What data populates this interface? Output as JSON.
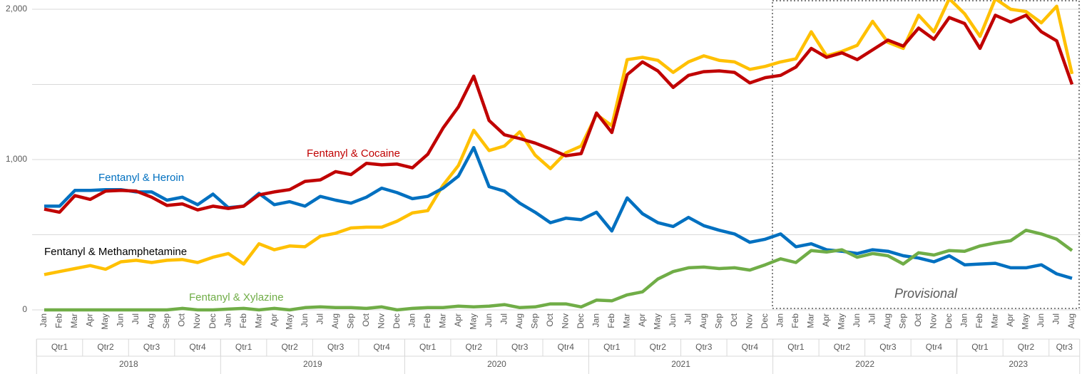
{
  "chart_data": {
    "type": "line",
    "categories": [
      "Jan",
      "Feb",
      "Mar",
      "Apr",
      "May",
      "Jun",
      "Jul",
      "Aug",
      "Sep",
      "Oct",
      "Nov",
      "Dec",
      "Jan",
      "Feb",
      "Mar",
      "Apr",
      "May",
      "Jun",
      "Jul",
      "Aug",
      "Sep",
      "Oct",
      "Nov",
      "Dec",
      "Jan",
      "Feb",
      "Mar",
      "Apr",
      "May",
      "Jun",
      "Jul",
      "Aug",
      "Sep",
      "Oct",
      "Nov",
      "Dec",
      "Jan",
      "Feb",
      "Mar",
      "Apr",
      "May",
      "Jun",
      "Jul",
      "Aug",
      "Sep",
      "Oct",
      "Nov",
      "Dec",
      "Jan",
      "Feb",
      "Mar",
      "Apr",
      "May",
      "Jun",
      "Jul",
      "Aug",
      "Sep",
      "Oct",
      "Nov",
      "Dec",
      "Jan",
      "Feb",
      "Mar",
      "Apr",
      "May",
      "Jun",
      "Jul",
      "Aug"
    ],
    "quarters": [
      "Qtr1",
      "Qtr1",
      "Qtr1",
      "Qtr2",
      "Qtr2",
      "Qtr2",
      "Qtr3",
      "Qtr3",
      "Qtr3",
      "Qtr4",
      "Qtr4",
      "Qtr4",
      "Qtr1",
      "Qtr1",
      "Qtr1",
      "Qtr2",
      "Qtr2",
      "Qtr2",
      "Qtr3",
      "Qtr3",
      "Qtr3",
      "Qtr4",
      "Qtr4",
      "Qtr4",
      "Qtr1",
      "Qtr1",
      "Qtr1",
      "Qtr2",
      "Qtr2",
      "Qtr2",
      "Qtr3",
      "Qtr3",
      "Qtr3",
      "Qtr4",
      "Qtr4",
      "Qtr4",
      "Qtr1",
      "Qtr1",
      "Qtr1",
      "Qtr2",
      "Qtr2",
      "Qtr2",
      "Qtr3",
      "Qtr3",
      "Qtr3",
      "Qtr4",
      "Qtr4",
      "Qtr4",
      "Qtr1",
      "Qtr1",
      "Qtr1",
      "Qtr2",
      "Qtr2",
      "Qtr2",
      "Qtr3",
      "Qtr3",
      "Qtr3",
      "Qtr4",
      "Qtr4",
      "Qtr4",
      "Qtr1",
      "Qtr1",
      "Qtr1",
      "Qtr2",
      "Qtr2",
      "Qtr2",
      "Qtr3",
      "Qtr3"
    ],
    "years": [
      "2018",
      "2018",
      "2018",
      "2018",
      "2018",
      "2018",
      "2018",
      "2018",
      "2018",
      "2018",
      "2018",
      "2018",
      "2019",
      "2019",
      "2019",
      "2019",
      "2019",
      "2019",
      "2019",
      "2019",
      "2019",
      "2019",
      "2019",
      "2019",
      "2020",
      "2020",
      "2020",
      "2020",
      "2020",
      "2020",
      "2020",
      "2020",
      "2020",
      "2020",
      "2020",
      "2020",
      "2021",
      "2021",
      "2021",
      "2021",
      "2021",
      "2021",
      "2021",
      "2021",
      "2021",
      "2021",
      "2021",
      "2021",
      "2022",
      "2022",
      "2022",
      "2022",
      "2022",
      "2022",
      "2022",
      "2022",
      "2022",
      "2022",
      "2022",
      "2022",
      "2023",
      "2023",
      "2023",
      "2023",
      "2023",
      "2023",
      "2023",
      "2023"
    ],
    "series": [
      {
        "name": "Fentanyl & Heroin",
        "color": "#0070c0",
        "values": [
          690,
          690,
          795,
          795,
          800,
          800,
          785,
          785,
          730,
          750,
          700,
          770,
          680,
          690,
          775,
          700,
          720,
          690,
          755,
          730,
          710,
          750,
          810,
          780,
          740,
          755,
          810,
          890,
          1080,
          820,
          790,
          710,
          650,
          580,
          610,
          600,
          650,
          525,
          745,
          640,
          580,
          555,
          615,
          560,
          530,
          505,
          450,
          470,
          505,
          420,
          440,
          400,
          390,
          375,
          400,
          390,
          360,
          345,
          320,
          360,
          300,
          305,
          310,
          280,
          280,
          300,
          240,
          210
        ]
      },
      {
        "name": "Fentanyl & Cocaine",
        "color": "#c00000",
        "values": [
          670,
          650,
          760,
          735,
          790,
          795,
          790,
          750,
          695,
          705,
          665,
          690,
          675,
          690,
          765,
          785,
          800,
          855,
          865,
          920,
          900,
          975,
          965,
          970,
          945,
          1035,
          1210,
          1350,
          1555,
          1260,
          1165,
          1140,
          1110,
          1070,
          1025,
          1040,
          1310,
          1180,
          1565,
          1650,
          1590,
          1480,
          1560,
          1585,
          1590,
          1580,
          1510,
          1545,
          1560,
          1615,
          1740,
          1680,
          1710,
          1665,
          1730,
          1795,
          1755,
          1875,
          1800,
          1945,
          1905,
          1740,
          1960,
          1915,
          1960,
          1850,
          1790,
          1500
        ]
      },
      {
        "name": "Fentanyl & Methamphetamine",
        "color": "#ffc000",
        "label_color": "#000000",
        "values": [
          235,
          255,
          275,
          295,
          270,
          320,
          330,
          315,
          330,
          335,
          315,
          350,
          375,
          305,
          440,
          400,
          425,
          420,
          490,
          510,
          545,
          550,
          550,
          590,
          645,
          660,
          830,
          960,
          1195,
          1060,
          1090,
          1185,
          1030,
          940,
          1045,
          1090,
          1300,
          1225,
          1665,
          1680,
          1660,
          1580,
          1650,
          1690,
          1660,
          1650,
          1600,
          1620,
          1650,
          1670,
          1850,
          1690,
          1720,
          1760,
          1920,
          1780,
          1740,
          1960,
          1850,
          2070,
          1970,
          1820,
          2070,
          2000,
          1985,
          1910,
          2020,
          1570
        ]
      },
      {
        "name": "Fentanyl & Xylazine",
        "color": "#70ad47",
        "values": [
          0,
          0,
          0,
          0,
          0,
          0,
          0,
          0,
          0,
          10,
          0,
          0,
          5,
          10,
          0,
          10,
          0,
          15,
          20,
          15,
          15,
          10,
          20,
          0,
          10,
          15,
          15,
          25,
          20,
          25,
          35,
          15,
          20,
          40,
          40,
          20,
          65,
          60,
          100,
          120,
          205,
          255,
          280,
          285,
          275,
          280,
          265,
          300,
          340,
          315,
          395,
          385,
          400,
          350,
          375,
          360,
          305,
          380,
          365,
          395,
          390,
          425,
          445,
          460,
          530,
          505,
          470,
          395
        ]
      }
    ],
    "ylim": [
      0,
      2050
    ],
    "yticks": [
      0,
      {
        "value": 1000,
        "label": "1,000"
      },
      {
        "value": 2000,
        "label": "2,000"
      }
    ],
    "ygrid": [
      500,
      1500
    ],
    "grid": true,
    "annotation": "Provisional"
  }
}
